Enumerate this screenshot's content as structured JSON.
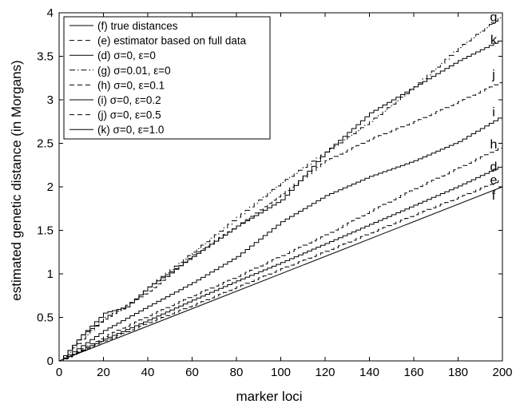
{
  "chart_data": {
    "type": "line",
    "title": "",
    "xlabel": "marker loci",
    "ylabel": "estimated genetic distance  (in Morgans)",
    "xlim": [
      0,
      200
    ],
    "ylim": [
      0,
      4
    ],
    "x_ticks": [
      0,
      20,
      40,
      60,
      80,
      100,
      120,
      140,
      160,
      180,
      200
    ],
    "y_ticks": [
      0,
      0.5,
      1,
      1.5,
      2,
      2.5,
      3,
      3.5,
      4
    ],
    "grid": false,
    "legend_position": "top-left",
    "series": [
      {
        "name": "(f) true distances",
        "end_label": "f",
        "style": "solid",
        "x": [
          0,
          200
        ],
        "y": [
          0,
          2.0
        ]
      },
      {
        "name": "(e) estimator based on full data",
        "end_label": "e",
        "style": "dashed",
        "x": [
          0,
          20,
          40,
          60,
          80,
          100,
          120,
          140,
          160,
          180,
          200
        ],
        "y": [
          0,
          0.23,
          0.44,
          0.64,
          0.85,
          1.06,
          1.26,
          1.47,
          1.68,
          1.88,
          2.09
        ]
      },
      {
        "name": "(d) σ=0, ε=0",
        "end_label": "d",
        "style": "solid",
        "x": [
          0,
          20,
          40,
          60,
          80,
          100,
          120,
          140,
          160,
          180,
          200
        ],
        "y": [
          0,
          0.25,
          0.47,
          0.7,
          0.92,
          1.13,
          1.35,
          1.57,
          1.79,
          2.01,
          2.25
        ]
      },
      {
        "name": "(g) σ=0.01, ε=0",
        "end_label": "g",
        "style": "dashdot",
        "x": [
          0,
          10,
          20,
          30,
          40,
          60,
          80,
          100,
          120,
          140,
          160,
          180,
          200
        ],
        "y": [
          0,
          0.25,
          0.5,
          0.62,
          0.85,
          1.25,
          1.65,
          2.05,
          2.4,
          2.75,
          3.15,
          3.6,
          3.98
        ]
      },
      {
        "name": "(h) σ=0, ε=0.1",
        "end_label": "h",
        "style": "dashed",
        "x": [
          0,
          20,
          40,
          60,
          80,
          100,
          120,
          140,
          160,
          180,
          200
        ],
        "y": [
          0,
          0.28,
          0.52,
          0.75,
          0.97,
          1.21,
          1.45,
          1.72,
          1.98,
          2.22,
          2.47
        ]
      },
      {
        "name": "(i) σ=0, ε=0.2",
        "end_label": "i",
        "style": "solid",
        "x": [
          0,
          20,
          40,
          60,
          80,
          100,
          120,
          140,
          160,
          180,
          200
        ],
        "y": [
          0,
          0.35,
          0.63,
          0.9,
          1.2,
          1.6,
          1.9,
          2.12,
          2.3,
          2.52,
          2.82
        ]
      },
      {
        "name": "(j) σ=0, ε=0.5",
        "end_label": "j",
        "style": "dashed",
        "x": [
          0,
          10,
          20,
          40,
          60,
          80,
          100,
          120,
          140,
          160,
          180,
          200
        ],
        "y": [
          0,
          0.3,
          0.48,
          0.8,
          1.22,
          1.55,
          1.92,
          2.3,
          2.55,
          2.75,
          2.98,
          3.22
        ]
      },
      {
        "name": "(k) σ=0, ε=1.0",
        "end_label": "k",
        "style": "solid",
        "x": [
          0,
          10,
          20,
          30,
          40,
          60,
          80,
          100,
          120,
          140,
          160,
          180,
          200
        ],
        "y": [
          0,
          0.3,
          0.55,
          0.62,
          0.85,
          1.2,
          1.55,
          1.85,
          2.4,
          2.85,
          3.15,
          3.45,
          3.7
        ]
      }
    ]
  }
}
